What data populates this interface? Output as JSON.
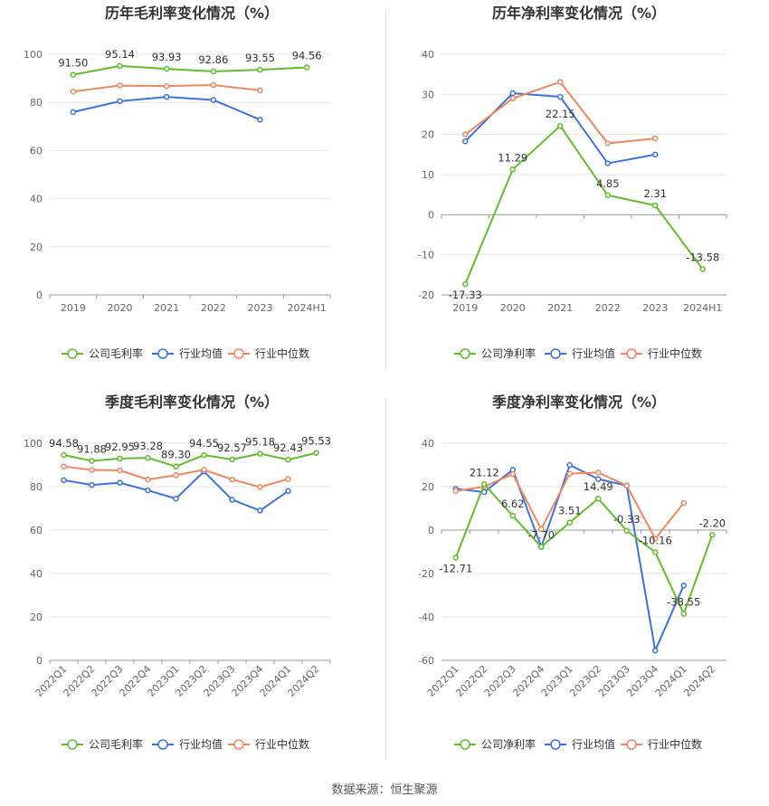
{
  "source": "数据来源：恒生聚源",
  "colors": {
    "company": "#5fbf2a",
    "avg": "#3a73e0",
    "median": "#f0865c",
    "grid": "#e6e6e6",
    "axis": "#666666"
  },
  "chart_data": [
    {
      "type": "line",
      "title": "历年毛利率变化情况（%）",
      "categories": [
        "2019",
        "2020",
        "2021",
        "2022",
        "2023",
        "2024H1"
      ],
      "ylim": [
        0,
        100
      ],
      "yticks": [
        0,
        20,
        40,
        60,
        80,
        100
      ],
      "legend": [
        "公司毛利率",
        "行业均值",
        "行业中位数"
      ],
      "series": [
        {
          "name": "公司毛利率",
          "values": [
            91.5,
            95.14,
            93.93,
            92.86,
            93.55,
            94.56
          ],
          "labels": [
            "91.50",
            "95.14",
            "93.93",
            "92.86",
            "93.55",
            "94.56"
          ]
        },
        {
          "name": "行业均值",
          "values": [
            76.0,
            80.5,
            82.3,
            81.0,
            72.8,
            null
          ]
        },
        {
          "name": "行业中位数",
          "values": [
            84.5,
            87.0,
            86.8,
            87.2,
            85.0,
            null
          ]
        }
      ]
    },
    {
      "type": "line",
      "title": "历年净利率变化情况（%）",
      "categories": [
        "2019",
        "2020",
        "2021",
        "2022",
        "2023",
        "2024H1"
      ],
      "ylim": [
        -20,
        40
      ],
      "yticks": [
        -20,
        -10,
        0,
        10,
        20,
        30,
        40
      ],
      "legend": [
        "公司净利率",
        "行业均值",
        "行业中位数"
      ],
      "series": [
        {
          "name": "公司净利率",
          "values": [
            -17.33,
            11.29,
            22.15,
            4.85,
            2.31,
            -13.58
          ],
          "labels": [
            "-17.33",
            "11.29",
            "22.15",
            "4.85",
            "2.31",
            "-13.58"
          ]
        },
        {
          "name": "行业均值",
          "values": [
            18.3,
            30.3,
            29.4,
            12.8,
            15.0,
            null
          ]
        },
        {
          "name": "行业中位数",
          "values": [
            20.0,
            29.0,
            33.1,
            17.8,
            19.0,
            null
          ]
        }
      ]
    },
    {
      "type": "line",
      "title": "季度毛利率变化情况（%）",
      "categories": [
        "2022Q1",
        "2022Q2",
        "2022Q3",
        "2022Q4",
        "2023Q1",
        "2023Q2",
        "2023Q3",
        "2023Q4",
        "2024Q1",
        "2024Q2"
      ],
      "ylim": [
        0,
        100
      ],
      "yticks": [
        0,
        20,
        40,
        60,
        80,
        100
      ],
      "legend": [
        "公司毛利率",
        "行业均值",
        "行业中位数"
      ],
      "series": [
        {
          "name": "公司毛利率",
          "values": [
            94.58,
            91.88,
            92.95,
            93.28,
            89.3,
            94.55,
            92.57,
            95.18,
            92.43,
            95.53
          ],
          "labels": [
            "94.58",
            "91.88",
            "92.95",
            "93.28",
            "89.30",
            "94.55",
            "92.57",
            "95.18",
            "92.43",
            "95.53"
          ]
        },
        {
          "name": "行业均值",
          "values": [
            83.0,
            80.8,
            81.8,
            78.3,
            74.5,
            87.0,
            74.0,
            69.0,
            78.0,
            null
          ]
        },
        {
          "name": "行业中位数",
          "values": [
            89.3,
            87.7,
            87.5,
            83.3,
            85.3,
            87.8,
            83.3,
            79.8,
            83.5,
            null
          ]
        }
      ]
    },
    {
      "type": "line",
      "title": "季度净利率变化情况（%）",
      "categories": [
        "2022Q1",
        "2022Q2",
        "2022Q3",
        "2022Q4",
        "2023Q1",
        "2023Q2",
        "2023Q3",
        "2023Q4",
        "2024Q1",
        "2024Q2"
      ],
      "ylim": [
        -60,
        40
      ],
      "yticks": [
        -60,
        -40,
        -20,
        0,
        20,
        40
      ],
      "legend": [
        "公司净利率",
        "行业均值",
        "行业中位数"
      ],
      "series": [
        {
          "name": "公司净利率",
          "values": [
            -12.71,
            21.12,
            6.62,
            -7.7,
            3.51,
            14.49,
            -0.33,
            -10.16,
            -38.55,
            -2.2
          ],
          "labels": [
            "-12.71",
            "21.12",
            "6.62",
            "-7.70",
            "3.51",
            "14.49",
            "-0.33",
            "-10.16",
            "-38.55",
            "-2.20"
          ]
        },
        {
          "name": "行业均值",
          "values": [
            19.0,
            17.5,
            27.8,
            -7.8,
            30.0,
            23.5,
            20.5,
            -55.5,
            -25.5,
            null
          ]
        },
        {
          "name": "行业中位数",
          "values": [
            18.0,
            20.0,
            25.8,
            0.5,
            26.0,
            26.5,
            20.5,
            -4.0,
            12.5,
            null
          ]
        }
      ]
    }
  ]
}
